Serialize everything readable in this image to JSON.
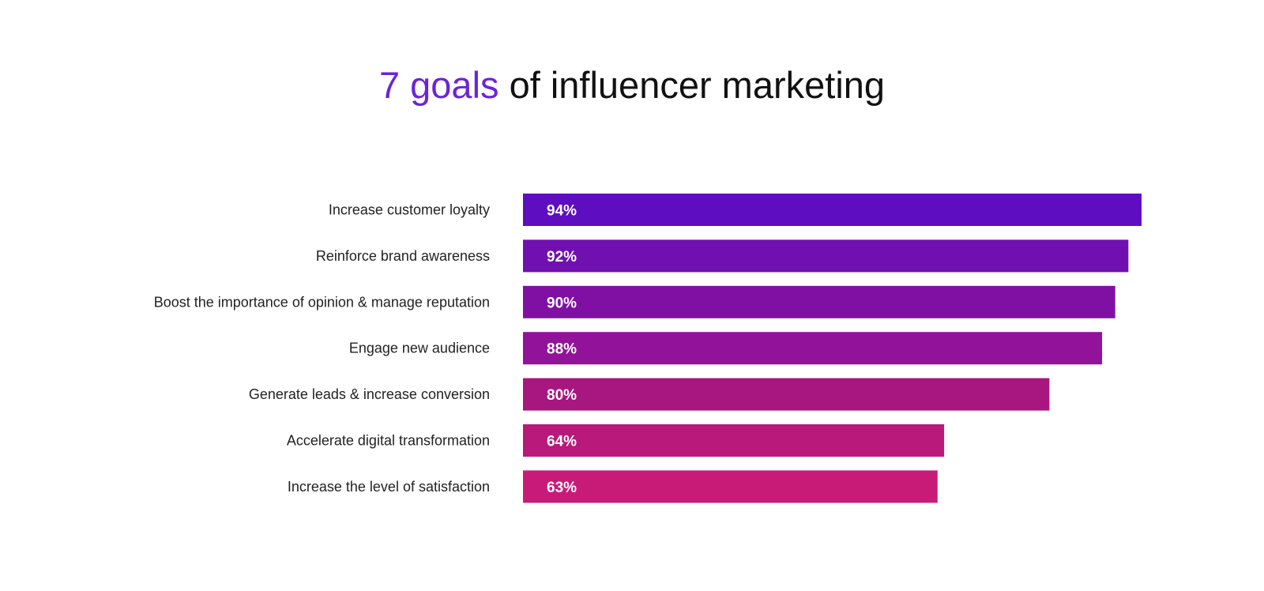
{
  "title": {
    "accent": "7 goals",
    "rest": " of influencer marketing",
    "accent_color": "#6a25d6"
  },
  "chart_data": {
    "type": "bar",
    "orientation": "horizontal",
    "title": "7 goals of influencer marketing",
    "categories": [
      "Increase customer loyalty",
      "Reinforce brand awareness",
      "Boost the importance of opinion & manage reputation",
      "Engage new audience",
      "Generate leads & increase conversion",
      "Accelerate digital transformation",
      "Increase the level of satisfaction"
    ],
    "values": [
      94,
      92,
      90,
      88,
      80,
      64,
      63
    ],
    "value_labels": [
      "94%",
      "92%",
      "90%",
      "88%",
      "80%",
      "64%",
      "63%"
    ],
    "unit": "%",
    "xlim": [
      0,
      100
    ],
    "xlabel": "",
    "ylabel": "",
    "grid": false,
    "legend": "none",
    "colors": [
      "#5e0ec0",
      "#7010b1",
      "#8010a3",
      "#93129a",
      "#a8167f",
      "#b8197a",
      "#c81b78"
    ]
  }
}
